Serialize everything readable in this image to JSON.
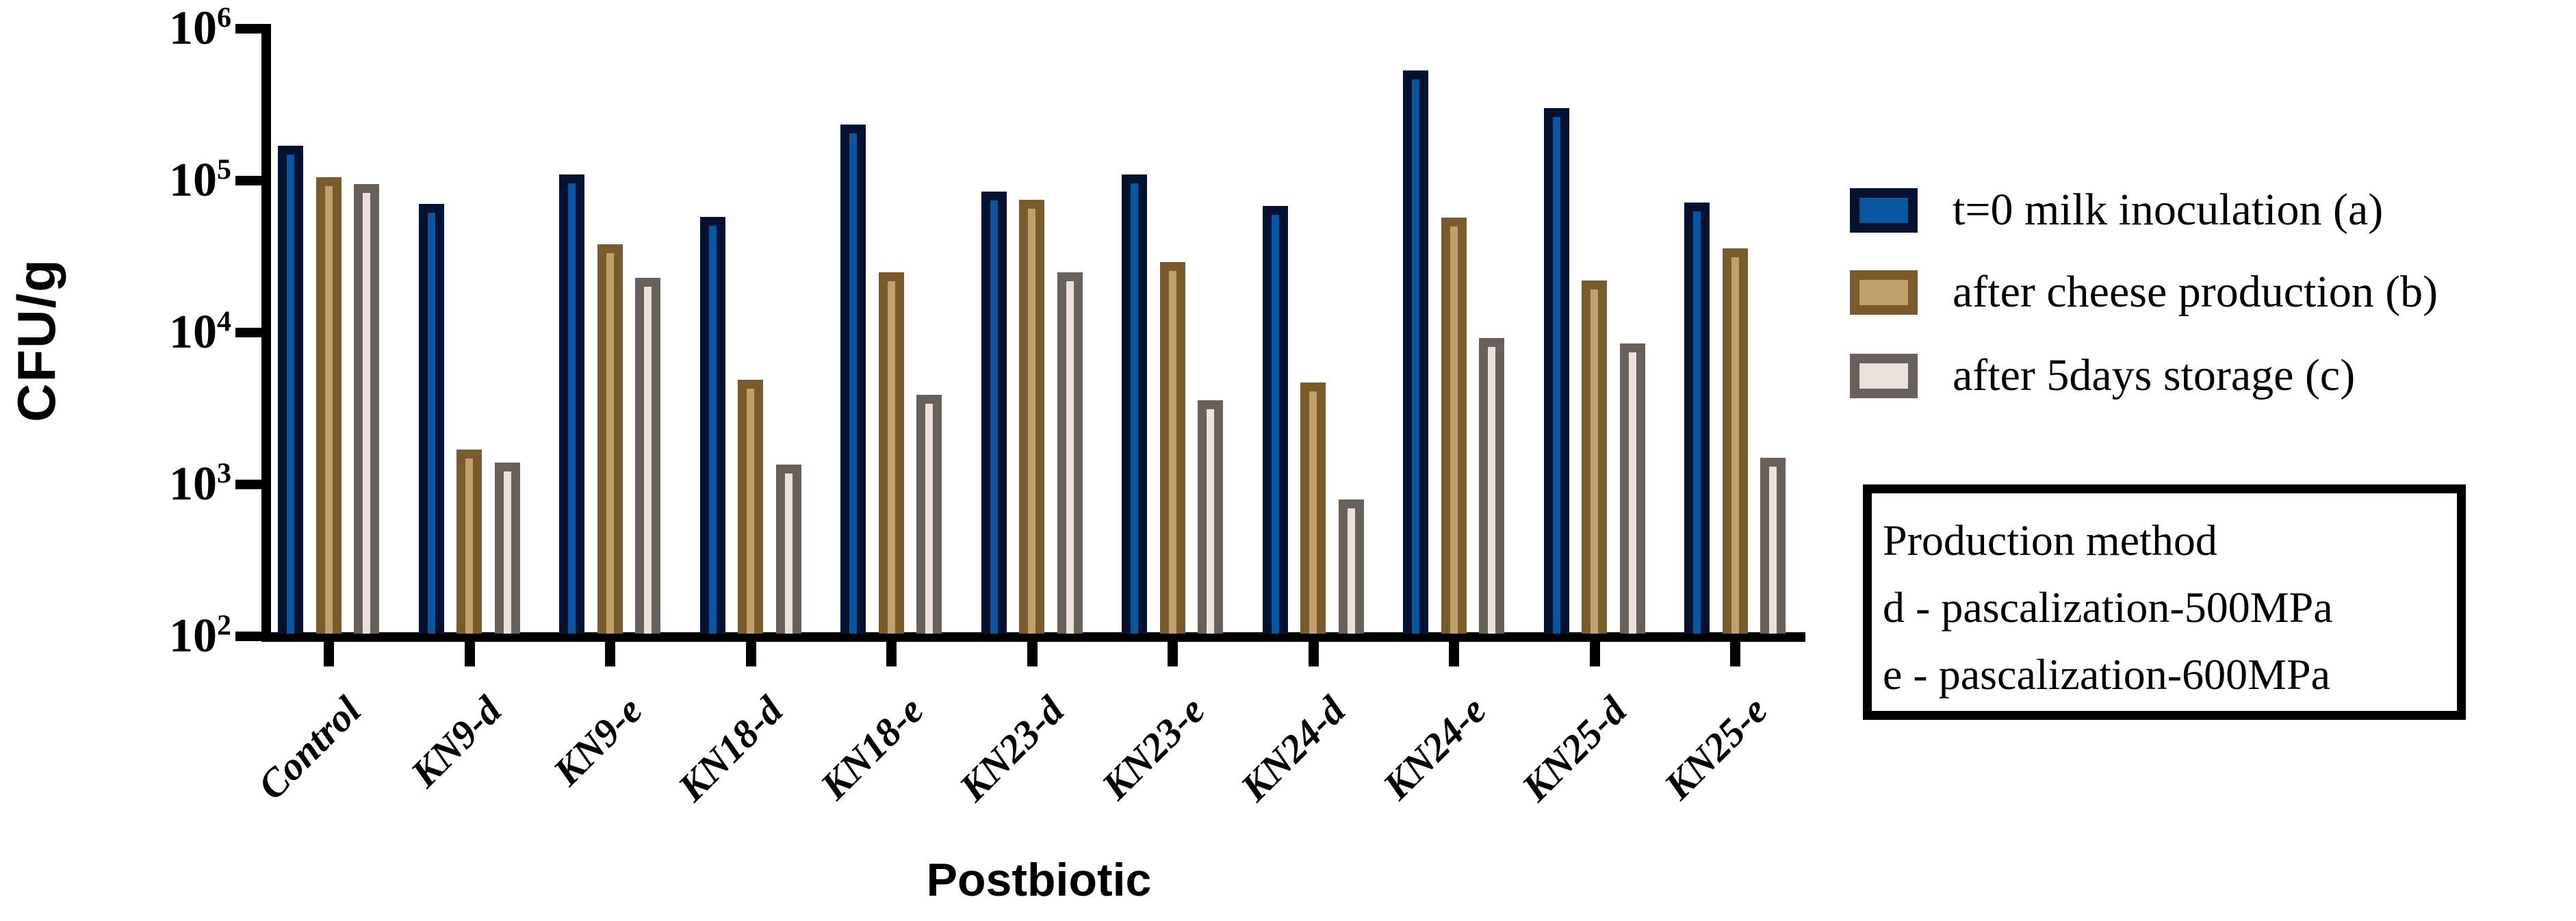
{
  "figure": {
    "background": "#ffffff",
    "y_axis": {
      "label": "CFU/g",
      "base": "10",
      "tick_exponents": [
        2,
        3,
        4,
        5,
        6
      ]
    },
    "x_axis": {
      "label": "Postbiotic"
    },
    "legend": {
      "items": [
        {
          "label": "t=0 milk inoculation (a)",
          "fill": "#0756a2",
          "border": "#051130",
          "icon": "blue-bar-swatch"
        },
        {
          "label": "after cheese production (b)",
          "fill": "#c2a06c",
          "border": "#7a5b2b",
          "icon": "tan-bar-swatch"
        },
        {
          "label": "after 5days storage (c)",
          "fill": "#e8e2da",
          "border": "#696159",
          "icon": "gray-bar-swatch"
        }
      ]
    },
    "info_box": {
      "lines": [
        "Production method",
        "d - pascalization-500MPa",
        "e - pascalization-600MPa"
      ]
    }
  },
  "chart_data": {
    "type": "bar",
    "title": "",
    "xlabel": "Postbiotic",
    "ylabel": "CFU/g",
    "y_scale": "log10",
    "ylim": [
      100,
      1000000
    ],
    "grid": false,
    "legend_position": "right",
    "categories": [
      "Control",
      "KN9-d",
      "KN9-e",
      "KN18-d",
      "KN18-e",
      "KN23-d",
      "KN23-e",
      "KN24-d",
      "KN24-e",
      "KN25-d",
      "KN25-e"
    ],
    "series": [
      {
        "name": "t=0 milk inoculation (a)",
        "fill": "#0756a2",
        "border": "#051130",
        "values": [
          170000,
          70000,
          110000,
          58000,
          235000,
          85000,
          110000,
          68000,
          530000,
          300000,
          72000
        ]
      },
      {
        "name": "after cheese production (b)",
        "fill": "#c2a06c",
        "border": "#7a5b2b",
        "values": [
          105000,
          1700,
          38000,
          4900,
          25000,
          75000,
          29000,
          4700,
          57000,
          22000,
          36000
        ]
      },
      {
        "name": "after 5days storage (c)",
        "fill": "#e8e2da",
        "border": "#696159",
        "values": [
          95000,
          1400,
          23000,
          1350,
          3900,
          25000,
          3600,
          800,
          9200,
          8500,
          1500
        ]
      }
    ]
  }
}
